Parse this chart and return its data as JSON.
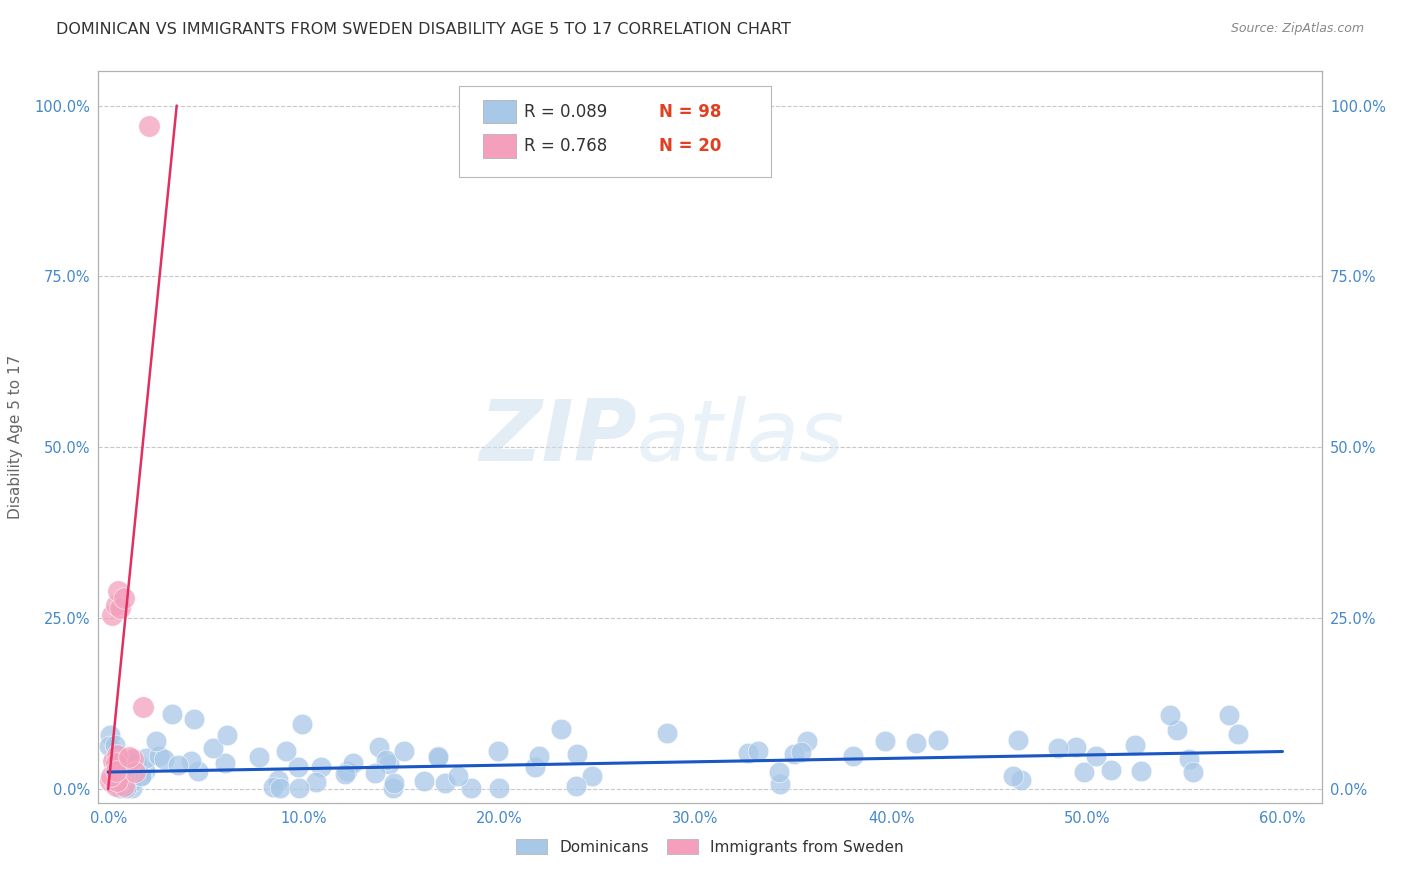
{
  "title": "DOMINICAN VS IMMIGRANTS FROM SWEDEN DISABILITY AGE 5 TO 17 CORRELATION CHART",
  "source": "Source: ZipAtlas.com",
  "xlabel_vals": [
    0.0,
    10.0,
    20.0,
    30.0,
    40.0,
    50.0,
    60.0
  ],
  "ylabel_vals": [
    0.0,
    25.0,
    50.0,
    75.0,
    100.0
  ],
  "xlim": [
    -0.5,
    62.0
  ],
  "ylim": [
    -2.0,
    105.0
  ],
  "ylabel": "Disability Age 5 to 17",
  "series": [
    {
      "name": "Dominicans",
      "R": 0.089,
      "N": 98,
      "color_scatter": "#a8c8e8",
      "color_line": "#1a56c4",
      "line_x": [
        0.0,
        60.0
      ],
      "line_y": [
        2.5,
        5.5
      ]
    },
    {
      "name": "Immigrants from Sweden",
      "R": 0.768,
      "N": 20,
      "color_scatter": "#f4a0bc",
      "color_line": "#e03060",
      "line_x": [
        0.0,
        3.5
      ],
      "line_y": [
        0.0,
        100.0
      ]
    }
  ],
  "watermark_zip": "ZIP",
  "watermark_atlas": "atlas",
  "background_color": "#ffffff",
  "grid_color": "#cccccc",
  "title_color": "#333333",
  "source_color": "#888888",
  "tick_color": "#4488cc",
  "ylabel_color": "#666666"
}
